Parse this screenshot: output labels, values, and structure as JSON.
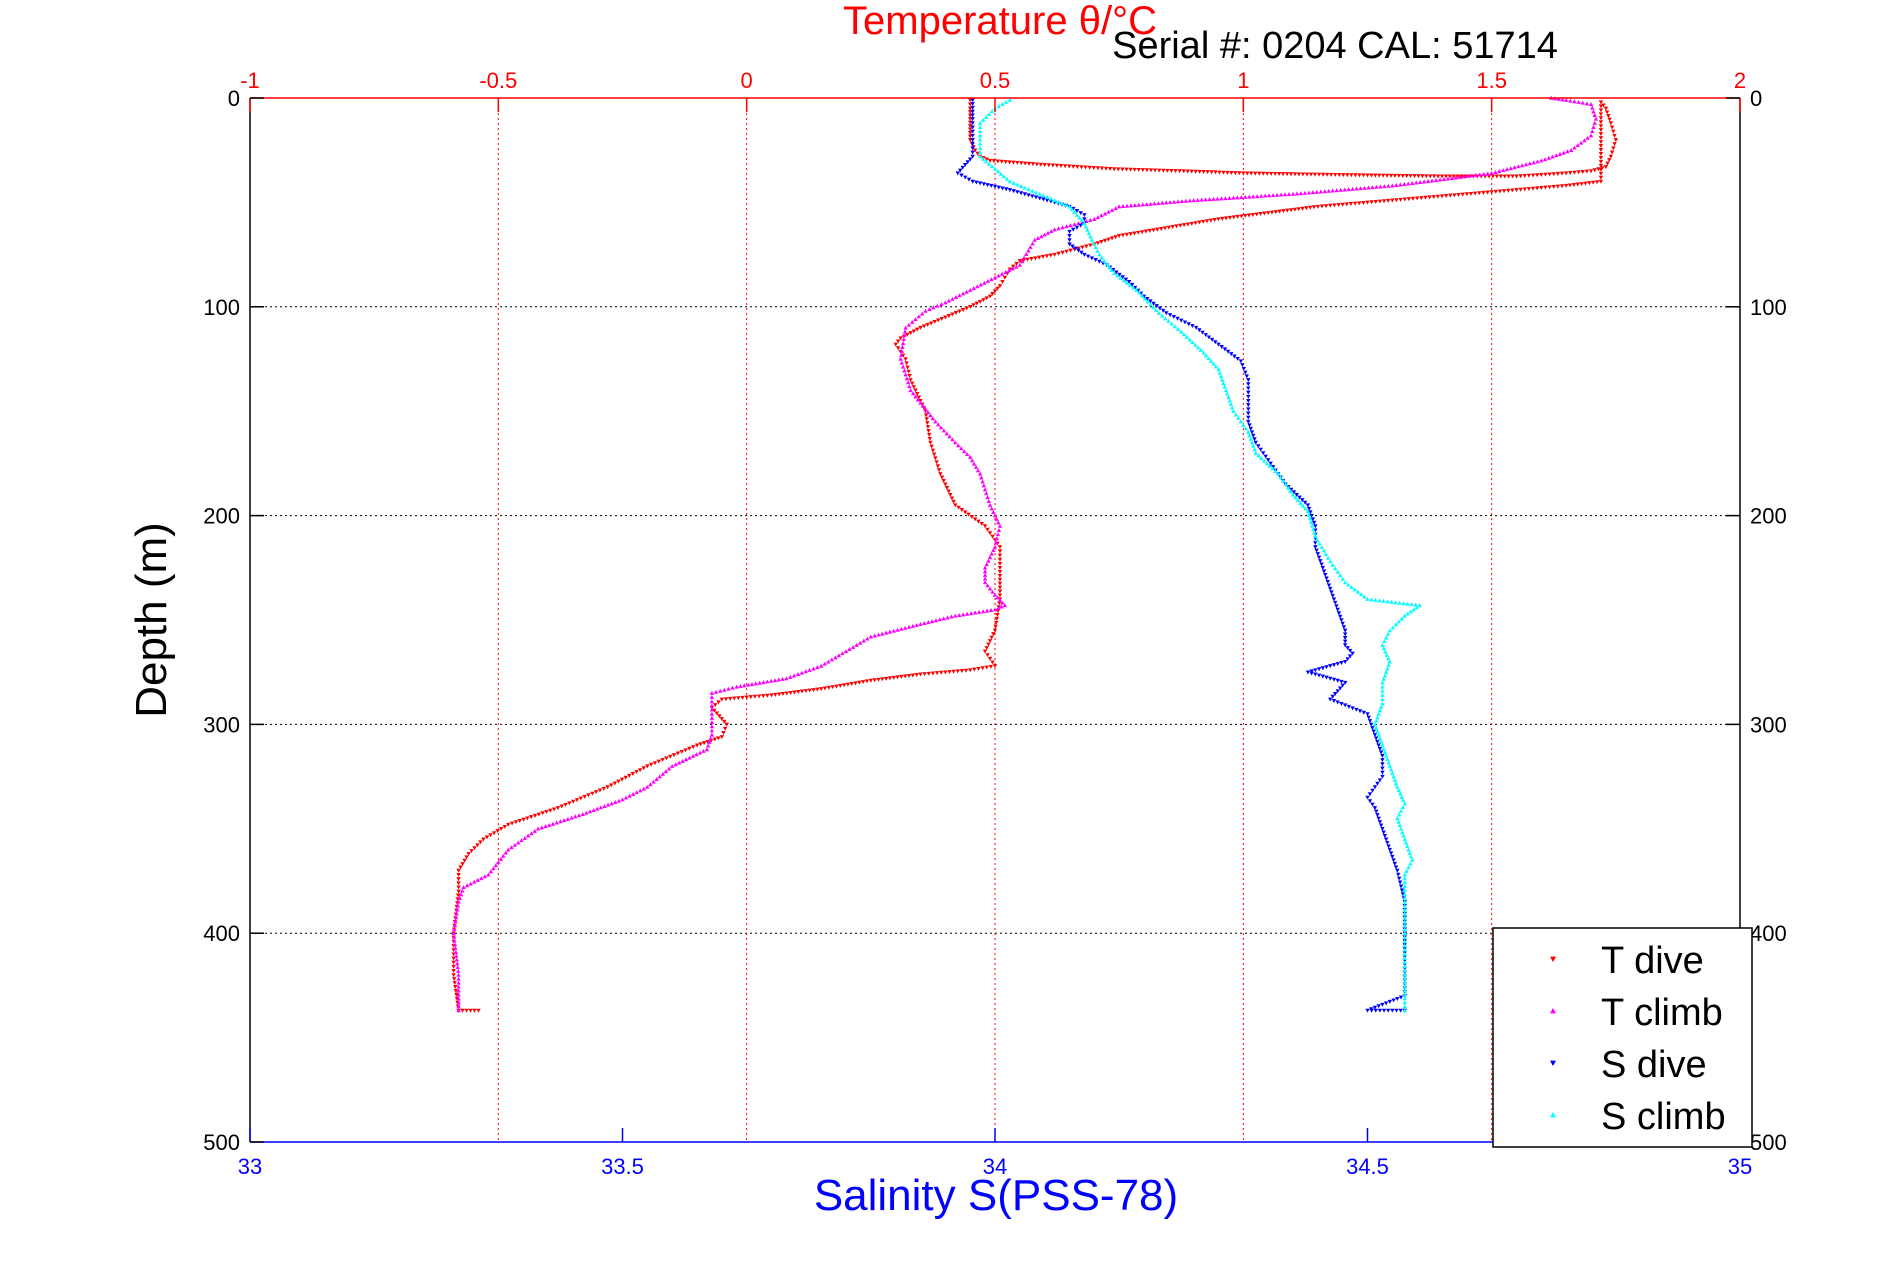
{
  "header": {
    "serial_label": "Serial #: 0204   CAL: 51714"
  },
  "colors": {
    "temperature_axis": "#ff0000",
    "salinity_axis": "#0000ff",
    "depth_axis": "#000000",
    "t_dive": "#ff0000",
    "t_climb": "#ff00ff",
    "s_dive": "#0000ff",
    "s_climb": "#00ffff"
  },
  "chart_data": {
    "type": "scatter",
    "title": "Temperature θ/°C",
    "xlabel": "Salinity S(PSS-78)",
    "ylabel": "Depth (m)",
    "top_axis": {
      "label": "Temperature θ/°C",
      "range": [
        -1,
        2
      ],
      "ticks": [
        "-1",
        "-0.5",
        "0",
        "0.5",
        "1",
        "1.5",
        "2"
      ],
      "tick_values": [
        -1,
        -0.5,
        0,
        0.5,
        1,
        1.5,
        2
      ]
    },
    "bottom_axis": {
      "label": "Salinity S(PSS-78)",
      "range": [
        33,
        35
      ],
      "ticks": [
        "33",
        "33.5",
        "34",
        "34.5",
        "35"
      ],
      "tick_values": [
        33,
        33.5,
        34,
        34.5,
        35
      ]
    },
    "y_axis": {
      "label": "Depth (m)",
      "range": [
        0,
        500
      ],
      "inverted": true,
      "ticks": [
        "0",
        "100",
        "200",
        "300",
        "400",
        "500"
      ],
      "tick_values": [
        0,
        100,
        200,
        300,
        400,
        500
      ]
    },
    "grid": true,
    "legend_placement": "bottom-right",
    "series": [
      {
        "name": "T dive",
        "axis": "temperature",
        "marker": "triangle-down",
        "points": [
          [
            0.45,
            1
          ],
          [
            0.45,
            5
          ],
          [
            0.45,
            10
          ],
          [
            0.45,
            15
          ],
          [
            0.45,
            20
          ],
          [
            0.46,
            25
          ],
          [
            0.47,
            28
          ],
          [
            0.49,
            30
          ],
          [
            0.6,
            32
          ],
          [
            0.74,
            34
          ],
          [
            0.88,
            35
          ],
          [
            1.0,
            36
          ],
          [
            1.12,
            36.5
          ],
          [
            1.25,
            37
          ],
          [
            1.4,
            37.5
          ],
          [
            1.55,
            37.5
          ],
          [
            1.65,
            36
          ],
          [
            1.7,
            35
          ],
          [
            1.73,
            33
          ],
          [
            1.74,
            28
          ],
          [
            1.75,
            20
          ],
          [
            1.74,
            12
          ],
          [
            1.73,
            5
          ],
          [
            1.72,
            2
          ],
          [
            1.72,
            40
          ],
          [
            1.65,
            42
          ],
          [
            1.55,
            44
          ],
          [
            1.45,
            46
          ],
          [
            1.35,
            48
          ],
          [
            1.25,
            50
          ],
          [
            1.15,
            52
          ],
          [
            1.05,
            55
          ],
          [
            0.95,
            58
          ],
          [
            0.85,
            62
          ],
          [
            0.75,
            66
          ],
          [
            0.7,
            70
          ],
          [
            0.62,
            75
          ],
          [
            0.55,
            78
          ],
          [
            0.53,
            82
          ],
          [
            0.52,
            86
          ],
          [
            0.51,
            90
          ],
          [
            0.49,
            95
          ],
          [
            0.45,
            100
          ],
          [
            0.4,
            105
          ],
          [
            0.35,
            110
          ],
          [
            0.31,
            115
          ],
          [
            0.3,
            118
          ],
          [
            0.32,
            125
          ],
          [
            0.33,
            135
          ],
          [
            0.36,
            150
          ],
          [
            0.37,
            165
          ],
          [
            0.39,
            180
          ],
          [
            0.42,
            195
          ],
          [
            0.48,
            205
          ],
          [
            0.51,
            215
          ],
          [
            0.51,
            225
          ],
          [
            0.51,
            240
          ],
          [
            0.5,
            255
          ],
          [
            0.48,
            265
          ],
          [
            0.5,
            272
          ],
          [
            0.45,
            274
          ],
          [
            0.35,
            276
          ],
          [
            0.25,
            279
          ],
          [
            0.15,
            283
          ],
          [
            0.05,
            286
          ],
          [
            -0.05,
            288
          ],
          [
            -0.07,
            292
          ],
          [
            -0.04,
            300
          ],
          [
            -0.05,
            306
          ],
          [
            -0.1,
            310
          ],
          [
            -0.2,
            320
          ],
          [
            -0.28,
            330
          ],
          [
            -0.38,
            340
          ],
          [
            -0.48,
            348
          ],
          [
            -0.53,
            355
          ],
          [
            -0.56,
            362
          ],
          [
            -0.58,
            370
          ],
          [
            -0.58,
            380
          ],
          [
            -0.59,
            400
          ],
          [
            -0.59,
            420
          ],
          [
            -0.58,
            437
          ],
          [
            -0.54,
            437
          ]
        ]
      },
      {
        "name": "T climb",
        "axis": "temperature",
        "marker": "triangle-up",
        "points": [
          [
            -0.58,
            437
          ],
          [
            -0.58,
            420
          ],
          [
            -0.59,
            400
          ],
          [
            -0.58,
            385
          ],
          [
            -0.57,
            378
          ],
          [
            -0.52,
            372
          ],
          [
            -0.48,
            360
          ],
          [
            -0.42,
            350
          ],
          [
            -0.33,
            343
          ],
          [
            -0.25,
            336
          ],
          [
            -0.2,
            330
          ],
          [
            -0.15,
            320
          ],
          [
            -0.08,
            312
          ],
          [
            -0.07,
            305
          ],
          [
            -0.07,
            295
          ],
          [
            -0.07,
            285
          ],
          [
            -0.02,
            282
          ],
          [
            0.08,
            278
          ],
          [
            0.15,
            272
          ],
          [
            0.2,
            265
          ],
          [
            0.25,
            258
          ],
          [
            0.35,
            252
          ],
          [
            0.42,
            248
          ],
          [
            0.5,
            245
          ],
          [
            0.52,
            243
          ],
          [
            0.5,
            238
          ],
          [
            0.48,
            232
          ],
          [
            0.48,
            225
          ],
          [
            0.5,
            215
          ],
          [
            0.51,
            205
          ],
          [
            0.49,
            195
          ],
          [
            0.47,
            180
          ],
          [
            0.45,
            172
          ],
          [
            0.42,
            165
          ],
          [
            0.38,
            155
          ],
          [
            0.33,
            140
          ],
          [
            0.31,
            125
          ],
          [
            0.32,
            110
          ],
          [
            0.36,
            102
          ],
          [
            0.4,
            98
          ],
          [
            0.45,
            92
          ],
          [
            0.5,
            86
          ],
          [
            0.55,
            80
          ],
          [
            0.58,
            68
          ],
          [
            0.62,
            63
          ],
          [
            0.7,
            58
          ],
          [
            0.75,
            52
          ],
          [
            0.9,
            49
          ],
          [
            1.1,
            46
          ],
          [
            1.3,
            42
          ],
          [
            1.5,
            36
          ],
          [
            1.6,
            30
          ],
          [
            1.66,
            25
          ],
          [
            1.7,
            18
          ],
          [
            1.71,
            10
          ],
          [
            1.7,
            3
          ],
          [
            1.65,
            1
          ],
          [
            1.62,
            0
          ]
        ]
      },
      {
        "name": "S dive",
        "axis": "salinity",
        "marker": "triangle-down",
        "points": [
          [
            33.97,
            1
          ],
          [
            33.97,
            10
          ],
          [
            33.97,
            20
          ],
          [
            33.97,
            28
          ],
          [
            33.96,
            32
          ],
          [
            33.95,
            36
          ],
          [
            33.97,
            40
          ],
          [
            34.02,
            44
          ],
          [
            34.06,
            48
          ],
          [
            34.1,
            52
          ],
          [
            34.12,
            56
          ],
          [
            34.12,
            60
          ],
          [
            34.1,
            64
          ],
          [
            34.1,
            70
          ],
          [
            34.12,
            75
          ],
          [
            34.15,
            80
          ],
          [
            34.18,
            88
          ],
          [
            34.2,
            95
          ],
          [
            34.23,
            103
          ],
          [
            34.27,
            110
          ],
          [
            34.3,
            118
          ],
          [
            34.33,
            126
          ],
          [
            34.34,
            135
          ],
          [
            34.34,
            145
          ],
          [
            34.34,
            155
          ],
          [
            34.35,
            165
          ],
          [
            34.37,
            175
          ],
          [
            34.39,
            185
          ],
          [
            34.42,
            195
          ],
          [
            34.43,
            205
          ],
          [
            34.43,
            215
          ],
          [
            34.44,
            225
          ],
          [
            34.45,
            235
          ],
          [
            34.46,
            245
          ],
          [
            34.47,
            255
          ],
          [
            34.47,
            262
          ],
          [
            34.48,
            266
          ],
          [
            34.47,
            270
          ],
          [
            34.42,
            275
          ],
          [
            34.47,
            280
          ],
          [
            34.45,
            288
          ],
          [
            34.5,
            295
          ],
          [
            34.51,
            305
          ],
          [
            34.52,
            315
          ],
          [
            34.52,
            325
          ],
          [
            34.5,
            335
          ],
          [
            34.51,
            340
          ],
          [
            34.52,
            350
          ],
          [
            34.53,
            360
          ],
          [
            34.54,
            370
          ],
          [
            34.55,
            385
          ],
          [
            34.55,
            400
          ],
          [
            34.55,
            415
          ],
          [
            34.55,
            430
          ],
          [
            34.5,
            437
          ],
          [
            34.55,
            437
          ]
        ]
      },
      {
        "name": "S climb",
        "axis": "salinity",
        "marker": "triangle-up",
        "points": [
          [
            34.55,
            437
          ],
          [
            34.55,
            420
          ],
          [
            34.55,
            400
          ],
          [
            34.55,
            385
          ],
          [
            34.55,
            372
          ],
          [
            34.56,
            365
          ],
          [
            34.55,
            355
          ],
          [
            34.54,
            345
          ],
          [
            34.55,
            338
          ],
          [
            34.54,
            330
          ],
          [
            34.53,
            320
          ],
          [
            34.52,
            310
          ],
          [
            34.51,
            300
          ],
          [
            34.52,
            290
          ],
          [
            34.52,
            280
          ],
          [
            34.53,
            270
          ],
          [
            34.52,
            262
          ],
          [
            34.53,
            255
          ],
          [
            34.55,
            248
          ],
          [
            34.57,
            243
          ],
          [
            34.5,
            240
          ],
          [
            34.47,
            232
          ],
          [
            34.45,
            222
          ],
          [
            34.43,
            210
          ],
          [
            34.42,
            198
          ],
          [
            34.4,
            190
          ],
          [
            34.38,
            180
          ],
          [
            34.35,
            170
          ],
          [
            34.34,
            160
          ],
          [
            34.32,
            150
          ],
          [
            34.31,
            140
          ],
          [
            34.3,
            130
          ],
          [
            34.28,
            122
          ],
          [
            34.25,
            112
          ],
          [
            34.22,
            103
          ],
          [
            34.19,
            92
          ],
          [
            34.16,
            84
          ],
          [
            34.14,
            75
          ],
          [
            34.13,
            68
          ],
          [
            34.12,
            60
          ],
          [
            34.1,
            52
          ],
          [
            34.06,
            46
          ],
          [
            34.02,
            40
          ],
          [
            34.0,
            34
          ],
          [
            33.98,
            28
          ],
          [
            33.98,
            20
          ],
          [
            33.98,
            12
          ],
          [
            34.0,
            5
          ],
          [
            34.02,
            1
          ]
        ]
      }
    ]
  }
}
